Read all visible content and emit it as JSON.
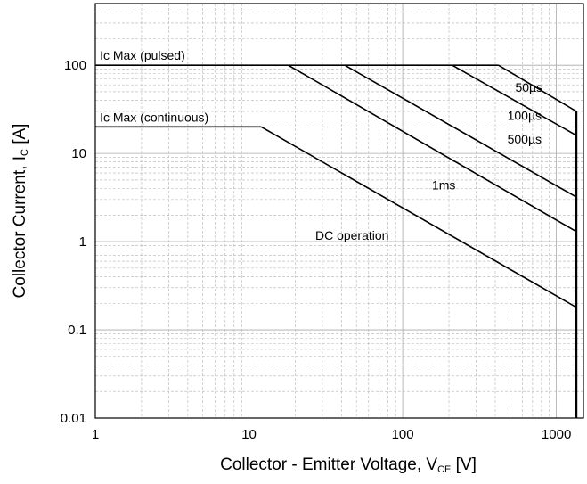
{
  "chart_data": {
    "type": "line",
    "title": "",
    "x_scale": "log",
    "y_scale": "log",
    "xlim": [
      1,
      1500
    ],
    "ylim": [
      0.01,
      500
    ],
    "xlabel": {
      "main": "Collector - Emitter Voltage, V",
      "sub": "CE",
      "unit": " [V]"
    },
    "ylabel": {
      "main": "Collector Current, I",
      "sub": "C",
      "unit": " [A]"
    },
    "x_ticks": [
      {
        "value": 1,
        "label": "1"
      },
      {
        "value": 10,
        "label": "10"
      },
      {
        "value": 100,
        "label": "100"
      },
      {
        "value": 1000,
        "label": "1000"
      }
    ],
    "y_ticks": [
      {
        "value": 0.01,
        "label": "0.01"
      },
      {
        "value": 0.1,
        "label": "0.1"
      },
      {
        "value": 1,
        "label": "1"
      },
      {
        "value": 10,
        "label": "10"
      },
      {
        "value": 100,
        "label": "100"
      }
    ],
    "grid": true,
    "vce_limit": 1350,
    "series": [
      {
        "name": "Ic Max (pulsed)",
        "points": [
          [
            1,
            100
          ],
          [
            420,
            100
          ]
        ]
      },
      {
        "name": "Ic Max (continuous)",
        "points": [
          [
            1,
            20
          ],
          [
            12,
            20
          ]
        ]
      },
      {
        "name": "50µs",
        "points": [
          [
            420,
            100
          ],
          [
            1350,
            30
          ]
        ]
      },
      {
        "name": "100µs",
        "points": [
          [
            210,
            100
          ],
          [
            1350,
            16
          ]
        ]
      },
      {
        "name": "500µs",
        "points": [
          [
            42,
            100
          ],
          [
            1350,
            3.2
          ]
        ]
      },
      {
        "name": "1ms",
        "points": [
          [
            18,
            100
          ],
          [
            1350,
            1.3
          ]
        ]
      },
      {
        "name": "DC operation",
        "points": [
          [
            12,
            20
          ],
          [
            1350,
            0.18
          ]
        ]
      }
    ],
    "annotations": [
      {
        "text": "Ic Max (pulsed)",
        "x": 1.07,
        "y": 115
      },
      {
        "text": "Ic Max (continuous)",
        "x": 1.07,
        "y": 23
      },
      {
        "text": "50µs",
        "x": 540,
        "y": 50
      },
      {
        "text": "100µs",
        "x": 480,
        "y": 24
      },
      {
        "text": "500µs",
        "x": 480,
        "y": 13
      },
      {
        "text": "1ms",
        "x": 155,
        "y": 3.9
      },
      {
        "text": "DC operation",
        "x": 27,
        "y": 1.05
      }
    ]
  }
}
